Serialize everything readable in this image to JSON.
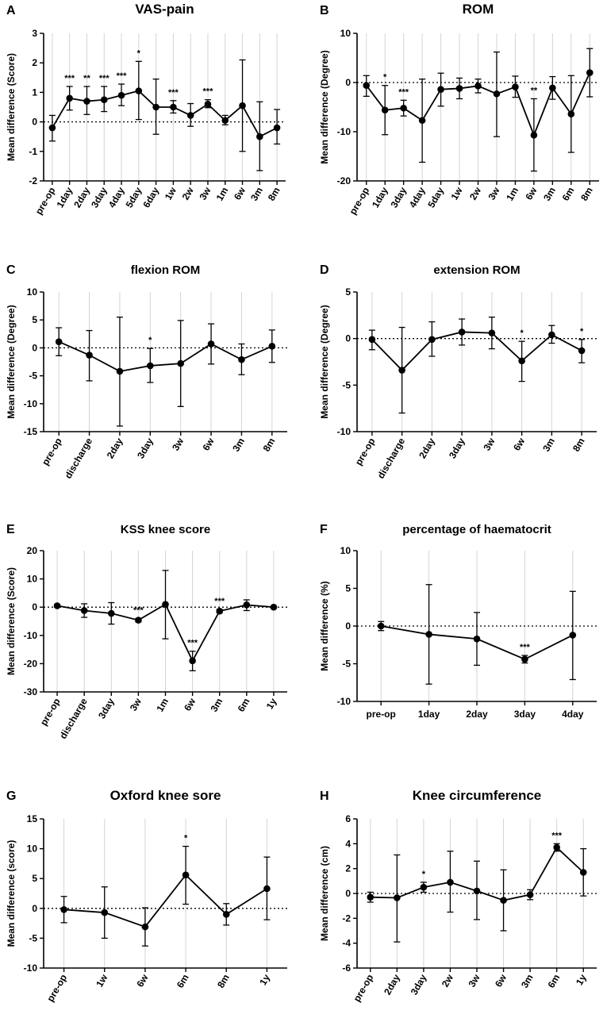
{
  "figure": {
    "panel_labels": [
      "A",
      "B",
      "C",
      "D",
      "E",
      "F",
      "G",
      "H"
    ]
  },
  "chart_data": [
    {
      "type": "line",
      "panel": "A",
      "title": "VAS-pain",
      "xlabel": "",
      "ylabel": "Mean difference (Score)",
      "ylim": [
        -2,
        3
      ],
      "yticks": [
        -2,
        -1,
        0,
        1,
        2,
        3
      ],
      "categories": [
        "pre-op",
        "1day",
        "2day",
        "3day",
        "4day",
        "5day",
        "6day",
        "1w",
        "2w",
        "3w",
        "1m",
        "6w",
        "3m",
        "8m"
      ],
      "values": [
        -0.2,
        0.8,
        0.7,
        0.75,
        0.9,
        1.05,
        0.5,
        0.5,
        0.22,
        0.6,
        0.05,
        0.55,
        -0.5,
        -0.2
      ],
      "err_low": [
        -0.65,
        0.4,
        0.25,
        0.35,
        0.55,
        0.08,
        -0.42,
        0.3,
        -0.15,
        0.48,
        -0.1,
        -1.0,
        -1.65,
        -0.75
      ],
      "err_high": [
        0.22,
        1.2,
        1.2,
        1.2,
        1.28,
        2.05,
        1.45,
        0.72,
        0.62,
        0.75,
        0.22,
        2.1,
        0.68,
        0.42
      ],
      "significance": [
        "",
        "***",
        "**",
        "***",
        "***",
        "*",
        "",
        "***",
        "",
        "***",
        "",
        "",
        "",
        ""
      ],
      "grid": "vertical",
      "reference_line": 0
    },
    {
      "type": "line",
      "panel": "B",
      "title": "ROM",
      "xlabel": "",
      "ylabel": "Mean difference (Degree)",
      "ylim": [
        -20,
        10
      ],
      "yticks": [
        -20,
        -10,
        0,
        10
      ],
      "categories": [
        "pre-op",
        "1day",
        "3day",
        "4day",
        "5day",
        "1w",
        "2w",
        "3w",
        "1m",
        "6w",
        "3m",
        "6m",
        "8m"
      ],
      "values": [
        -0.6,
        -5.6,
        -5.2,
        -7.7,
        -1.4,
        -1.2,
        -0.7,
        -2.3,
        -0.9,
        -10.7,
        -1.1,
        -6.4,
        2.0
      ],
      "err_low": [
        -2.8,
        -10.6,
        -6.8,
        -16.2,
        -4.8,
        -3.3,
        -2.1,
        -11.0,
        -3.0,
        -18.0,
        -3.4,
        -14.2,
        -2.9
      ],
      "err_high": [
        1.4,
        -0.6,
        -3.6,
        0.7,
        1.9,
        0.9,
        0.7,
        6.2,
        1.3,
        -3.3,
        1.2,
        1.4,
        6.9
      ],
      "significance": [
        "",
        "*",
        "***",
        "",
        "",
        "",
        "",
        "",
        "",
        "**",
        "",
        "",
        ""
      ],
      "grid": "vertical",
      "reference_line": 0
    },
    {
      "type": "line",
      "panel": "C",
      "title": "flexion ROM",
      "xlabel": "",
      "ylabel": "Mean difference (Degree)",
      "ylim": [
        -15,
        10
      ],
      "yticks": [
        -15,
        -10,
        -5,
        0,
        5,
        10
      ],
      "categories": [
        "pre-op",
        "discharge",
        "2day",
        "3day",
        "3w",
        "6w",
        "3m",
        "8m"
      ],
      "values": [
        1.1,
        -1.3,
        -4.2,
        -3.2,
        -2.8,
        0.7,
        -2.1,
        0.3
      ],
      "err_low": [
        -1.4,
        -5.9,
        -14.0,
        -6.2,
        -10.5,
        -2.9,
        -4.8,
        -2.6
      ],
      "err_high": [
        3.6,
        3.1,
        5.5,
        -0.1,
        4.9,
        4.3,
        0.7,
        3.2
      ],
      "significance": [
        "",
        "",
        "",
        "*",
        "",
        "",
        "",
        ""
      ],
      "grid": "vertical",
      "reference_line": 0
    },
    {
      "type": "line",
      "panel": "D",
      "title": "extension ROM",
      "xlabel": "",
      "ylabel": "Mean difference (Degree)",
      "ylim": [
        -10,
        5
      ],
      "yticks": [
        -10,
        -5,
        0,
        5
      ],
      "categories": [
        "pre-op",
        "discharge",
        "2day",
        "3day",
        "3w",
        "6w",
        "3m",
        "8m"
      ],
      "values": [
        -0.1,
        -3.4,
        -0.1,
        0.7,
        0.6,
        -2.4,
        0.4,
        -1.3
      ],
      "err_low": [
        -1.2,
        -8.0,
        -1.9,
        -0.7,
        -1.1,
        -4.6,
        -0.5,
        -2.6
      ],
      "err_high": [
        0.9,
        1.2,
        1.8,
        2.1,
        2.3,
        -0.3,
        1.4,
        -0.1
      ],
      "significance": [
        "",
        "",
        "",
        "",
        "",
        "*",
        "",
        "*"
      ],
      "grid": "vertical",
      "reference_line": 0
    },
    {
      "type": "line",
      "panel": "E",
      "title": "KSS knee score",
      "xlabel": "",
      "ylabel": "Mean difference (Score)",
      "ylim": [
        -30,
        20
      ],
      "yticks": [
        -30,
        -20,
        -10,
        0,
        10,
        20
      ],
      "categories": [
        "pre-op",
        "discharge",
        "3day",
        "3w",
        "1m",
        "6w",
        "3m",
        "6m",
        "1y"
      ],
      "values": [
        0.5,
        -1.2,
        -2.2,
        -4.6,
        1.0,
        -19.0,
        -1.4,
        0.8,
        0.0
      ],
      "err_low": [
        0.0,
        -3.6,
        -6.0,
        -5.2,
        -11.2,
        -22.5,
        -2.0,
        -1.2,
        -0.4
      ],
      "err_high": [
        1.0,
        1.2,
        1.6,
        -4.0,
        13.0,
        -15.6,
        -0.8,
        2.6,
        0.4
      ],
      "significance": [
        "",
        "",
        "",
        "***",
        "",
        "***",
        "***",
        "",
        ""
      ],
      "sig_position": [
        "",
        "",
        "",
        "above",
        "",
        "above",
        "above",
        "",
        ""
      ],
      "grid": "vertical",
      "reference_line": 0
    },
    {
      "type": "line",
      "panel": "F",
      "title": "percentage of haematocrit",
      "xlabel": "",
      "ylabel": "Mean difference (%)",
      "ylim": [
        -10,
        10
      ],
      "yticks": [
        -10,
        -5,
        0,
        5,
        10
      ],
      "categories": [
        "pre-op",
        "1day",
        "2day",
        "3day",
        "4day"
      ],
      "values": [
        0.0,
        -1.1,
        -1.7,
        -4.4,
        -1.2
      ],
      "err_low": [
        -0.6,
        -7.7,
        -5.2,
        -4.9,
        -7.1
      ],
      "err_high": [
        0.6,
        5.5,
        1.8,
        -3.9,
        4.6
      ],
      "significance": [
        "",
        "",
        "",
        "***",
        ""
      ],
      "grid": "vertical",
      "reference_line": 0
    },
    {
      "type": "line",
      "panel": "G",
      "title": "Oxford knee sore",
      "xlabel": "",
      "ylabel": "Mean difference (score)",
      "ylim": [
        -10,
        15
      ],
      "yticks": [
        -10,
        -5,
        0,
        5,
        10,
        15
      ],
      "categories": [
        "pre-op",
        "1w",
        "6w",
        "6m",
        "8m",
        "1y"
      ],
      "values": [
        -0.2,
        -0.7,
        -3.1,
        5.6,
        -1.0,
        3.3
      ],
      "err_low": [
        -2.4,
        -5.0,
        -6.3,
        0.7,
        -2.8,
        -1.9
      ],
      "err_high": [
        2.0,
        3.6,
        0.1,
        10.4,
        0.8,
        8.6
      ],
      "significance": [
        "",
        "",
        "",
        "*",
        "",
        ""
      ],
      "grid": "vertical",
      "reference_line": 0
    },
    {
      "type": "line",
      "panel": "H",
      "title": "Knee circumference",
      "xlabel": "",
      "ylabel": "Mean difference (cm)",
      "ylim": [
        -6,
        6
      ],
      "yticks": [
        -6,
        -4,
        -2,
        0,
        2,
        4,
        6
      ],
      "categories": [
        "pre-op",
        "2day",
        "3day",
        "2w",
        "3w",
        "6w",
        "3m",
        "6m",
        "1y"
      ],
      "values": [
        -0.3,
        -0.35,
        0.5,
        0.9,
        0.2,
        -0.55,
        -0.1,
        3.7,
        1.7
      ],
      "err_low": [
        -0.7,
        -3.9,
        0.1,
        -1.5,
        -2.1,
        -3.0,
        -0.5,
        3.4,
        -0.2
      ],
      "err_high": [
        0.1,
        3.1,
        0.9,
        3.4,
        2.6,
        1.9,
        0.3,
        4.0,
        3.6
      ],
      "significance": [
        "",
        "",
        "*",
        "",
        "",
        "",
        "",
        "***",
        ""
      ],
      "grid": "vertical",
      "reference_line": 0
    }
  ]
}
